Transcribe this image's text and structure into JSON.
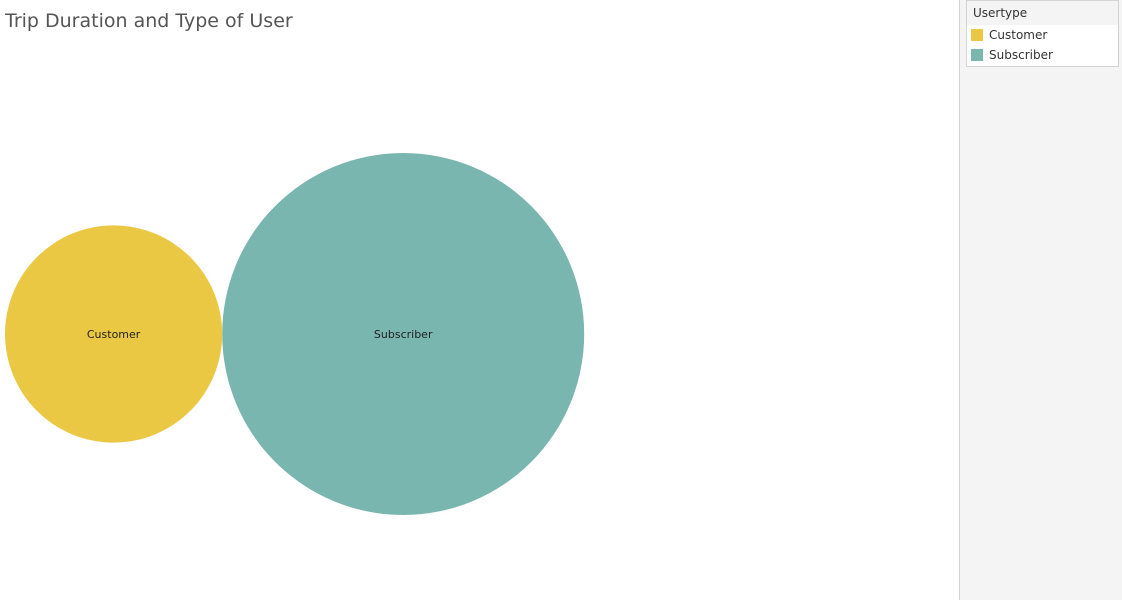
{
  "chart_title": "Trip Duration and Type of User",
  "legend": {
    "title": "Usertype",
    "items": [
      {
        "label": "Customer",
        "color": "#ebc844"
      },
      {
        "label": "Subscriber",
        "color": "#7ab6b0"
      }
    ]
  },
  "chart_data": {
    "type": "bubble",
    "title": "Trip Duration and Type of User",
    "size_measure": "Trip Duration",
    "color_field": "Usertype",
    "categories": [
      "Customer",
      "Subscriber"
    ],
    "values": [
      0.36,
      1.0
    ],
    "values_note_unit": "relative area (Subscriber = 1)",
    "colors": [
      "#ebc844",
      "#7ab6b0"
    ],
    "legend_position": "top-right"
  }
}
